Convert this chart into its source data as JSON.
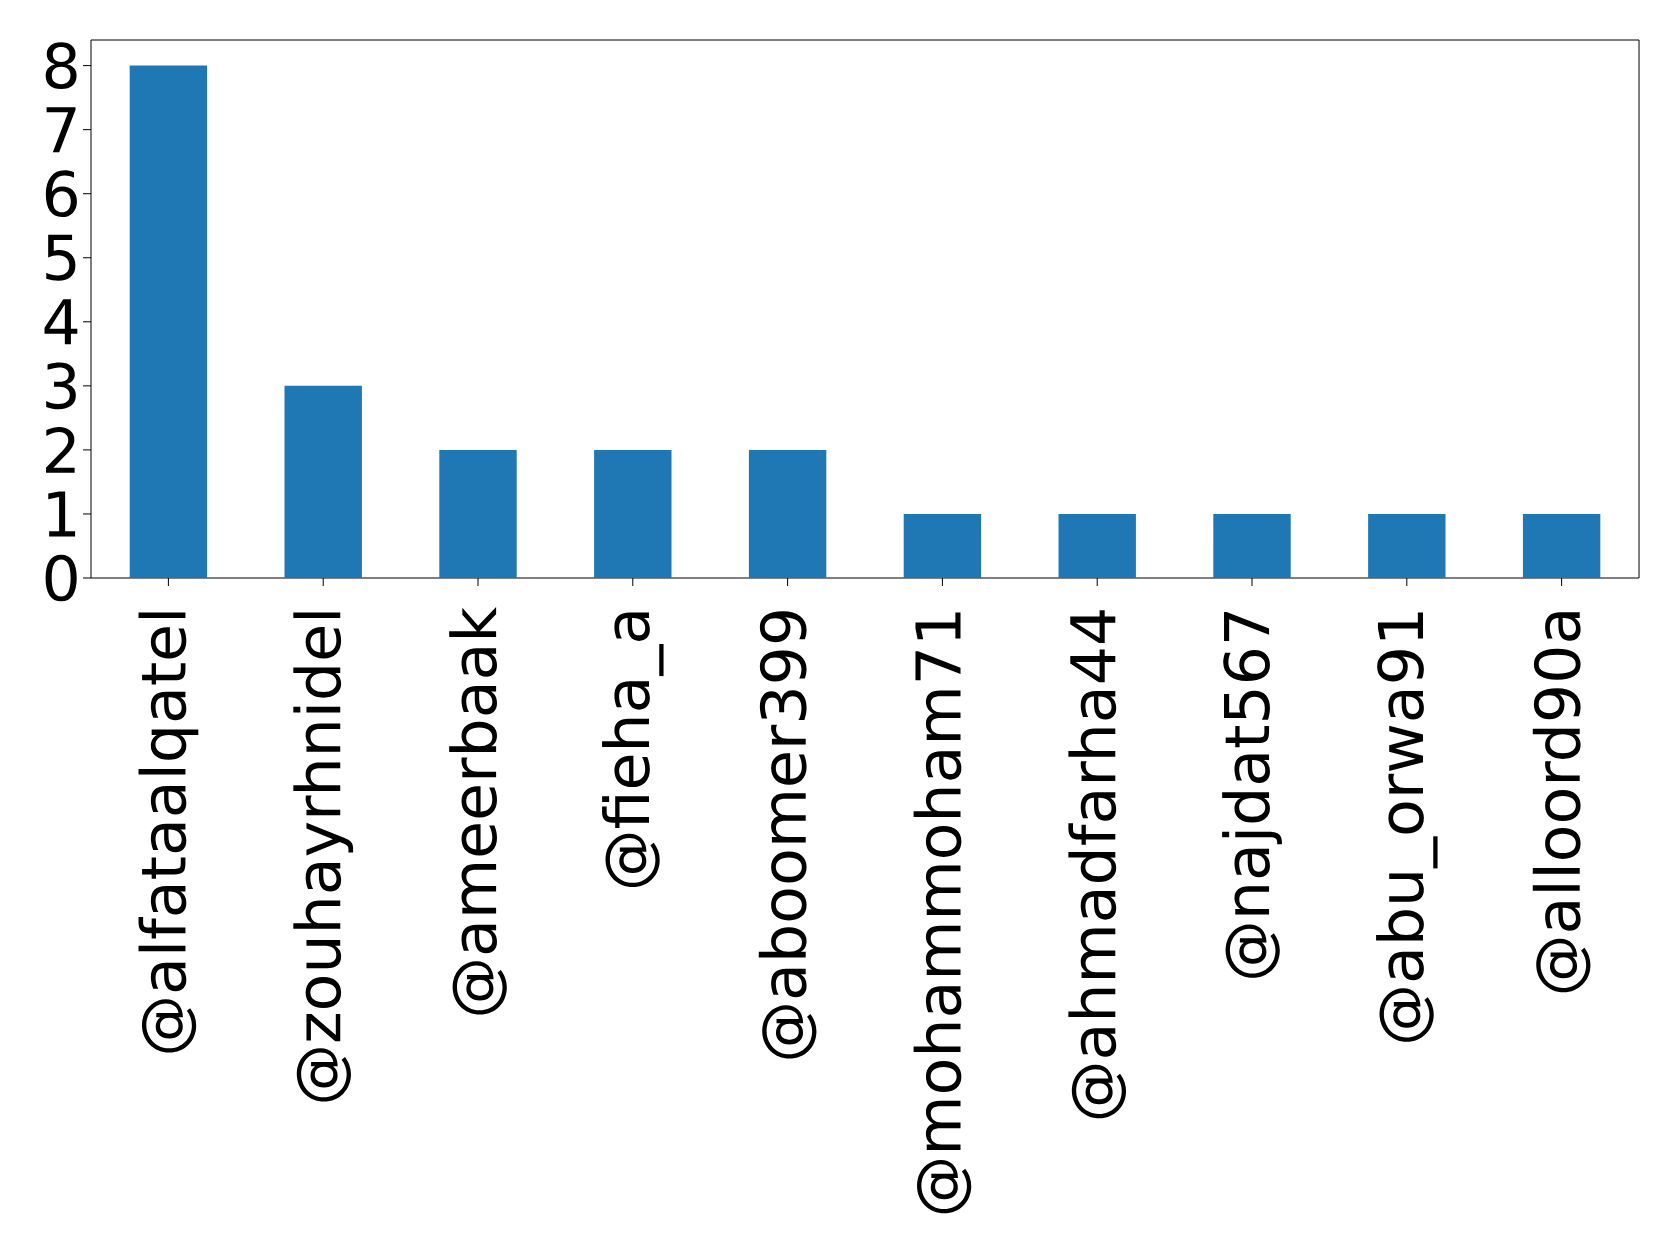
{
  "chart_data": {
    "type": "bar",
    "categories": [
      "@alfataalqatel",
      "@zouhayrhnidel",
      "@ameerbaak",
      "@fieha_a",
      "@aboomer399",
      "@mohammoham71",
      "@ahmadfarha44",
      "@najdat567",
      "@abu_orwa91",
      "@alloord90a"
    ],
    "values": [
      8,
      3,
      2,
      2,
      2,
      1,
      1,
      1,
      1,
      1
    ],
    "color": "#1f77b4",
    "ylim": [
      0,
      8.4
    ],
    "yticks": [
      0,
      1,
      2,
      3,
      4,
      5,
      6,
      7,
      8
    ]
  }
}
